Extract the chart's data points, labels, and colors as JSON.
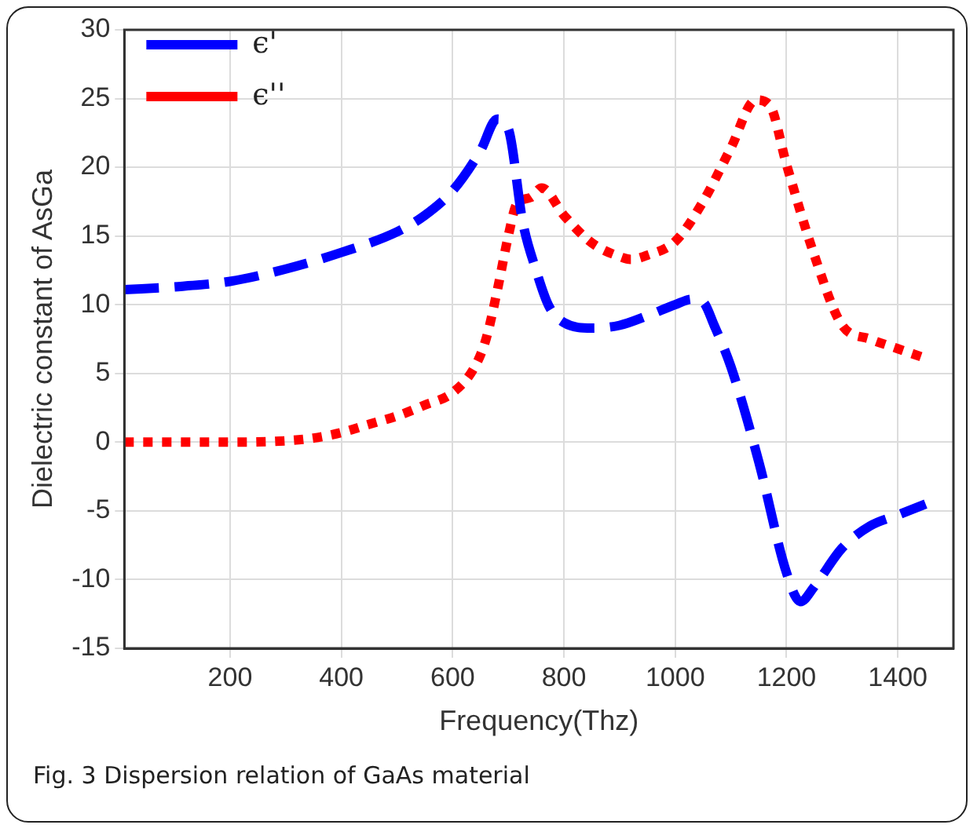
{
  "chart_data": {
    "type": "line",
    "xlabel": "Frequency(Thz)",
    "ylabel": "Dielectric constant of AsGa",
    "xlim": [
      10,
      1500
    ],
    "xticks": [
      200,
      400,
      600,
      800,
      1000,
      1200,
      1400
    ],
    "ylim": [
      -15,
      30
    ],
    "yticks": [
      -15,
      -10,
      -5,
      0,
      5,
      10,
      15,
      20,
      25,
      30
    ],
    "grid": true,
    "legend": "top left",
    "marker": "none",
    "series": [
      {
        "name": "ϵ'",
        "color": "#0000ff",
        "line_style": "dashed",
        "x": [
          10,
          100,
          200,
          300,
          400,
          500,
          550,
          600,
          650,
          680,
          700,
          726,
          750,
          773,
          800,
          850,
          900,
          950,
          1000,
          1030,
          1050,
          1070,
          1100,
          1150,
          1200,
          1225,
          1250,
          1300,
          1350,
          1400,
          1450
        ],
        "values": [
          11.1,
          11.3,
          11.7,
          12.6,
          13.8,
          15.3,
          16.5,
          18.3,
          21.2,
          23.5,
          22.8,
          16,
          12.5,
          9.9,
          8.7,
          8.3,
          8.5,
          9.2,
          10,
          10.4,
          10.2,
          8.5,
          5.5,
          -1.4,
          -9.5,
          -11.6,
          -10.5,
          -7.7,
          -6.1,
          -5.3,
          -4.5
        ]
      },
      {
        "name": "ϵ''",
        "color": "#ff0000",
        "line_style": "dotted",
        "x": [
          10,
          100,
          200,
          300,
          350,
          400,
          450,
          500,
          550,
          600,
          640,
          660,
          680,
          700,
          715,
          740,
          760,
          800,
          850,
          900,
          920,
          950,
          1000,
          1050,
          1100,
          1145,
          1170,
          1200,
          1250,
          1300,
          1350,
          1400,
          1450
        ],
        "values": [
          0,
          0,
          0,
          0.1,
          0.3,
          0.7,
          1.3,
          1.9,
          2.7,
          3.6,
          5.5,
          7.5,
          11,
          15,
          17.3,
          17.8,
          18.5,
          16.5,
          14.5,
          13.5,
          13.3,
          13.6,
          14.6,
          17.5,
          21.4,
          24.9,
          24.5,
          20.2,
          13.6,
          8.5,
          7.5,
          6.8,
          6.1
        ]
      }
    ],
    "annotations": [
      "Fig. 3 Dispersion relation of GaAs material"
    ]
  }
}
